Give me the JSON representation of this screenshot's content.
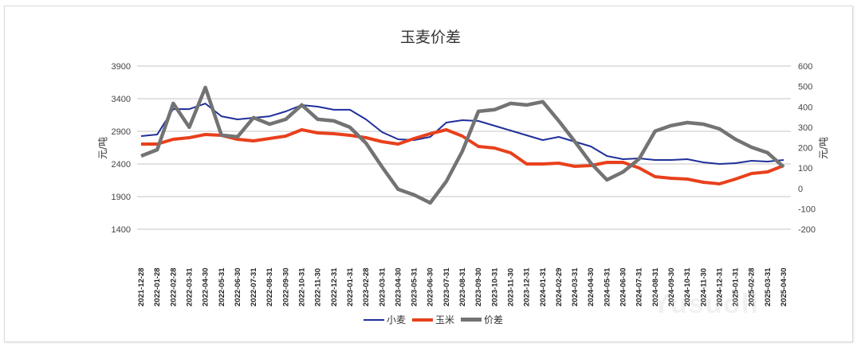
{
  "chart_data": {
    "type": "line",
    "title": "玉麦价差",
    "ylabel": "元/吨",
    "y2label": "元/吨",
    "ylim": [
      1400,
      3900
    ],
    "y2lim": [
      -200,
      600
    ],
    "yticks": [
      1400,
      1900,
      2400,
      2900,
      3400,
      3900
    ],
    "y2ticks": [
      -200,
      -100,
      0,
      100,
      200,
      300,
      400,
      500,
      600
    ],
    "grid": true,
    "legend_position": "bottom",
    "categories": [
      "2021-12-28",
      "2022-01-28",
      "2022-02-28",
      "2022-03-31",
      "2022-04-30",
      "2022-05-31",
      "2022-06-30",
      "2022-07-31",
      "2022-08-31",
      "2022-09-30",
      "2022-10-31",
      "2022-11-30",
      "2022-12-31",
      "2023-01-31",
      "2023-02-28",
      "2023-03-31",
      "2023-04-30",
      "2023-05-31",
      "2023-06-30",
      "2023-07-31",
      "2023-08-31",
      "2023-09-30",
      "2023-10-31",
      "2023-11-30",
      "2023-12-31",
      "2024-01-31",
      "2024-02-29",
      "2024-03-31",
      "2024-04-30",
      "2024-05-31",
      "2024-06-30",
      "2024-07-31",
      "2024-08-31",
      "2024-09-30",
      "2024-10-31",
      "2024-11-30",
      "2024-12-31",
      "2025-01-31",
      "2025-02-28",
      "2025-03-31",
      "2025-04-30"
    ],
    "series": [
      {
        "name": "小麦",
        "axis": "left",
        "color": "#1f2f9a",
        "values": [
          2827,
          2851,
          3241,
          3240,
          3326,
          3131,
          3083,
          3107,
          3131,
          3205,
          3302,
          3278,
          3230,
          3230,
          3083,
          2888,
          2778,
          2766,
          2815,
          3034,
          3071,
          3059,
          2985,
          2912,
          2839,
          2766,
          2815,
          2742,
          2668,
          2522,
          2473,
          2485,
          2461,
          2461,
          2473,
          2424,
          2400,
          2412,
          2449,
          2437,
          2461
        ]
      },
      {
        "name": "玉米",
        "axis": "left",
        "color": "#e8401c",
        "values": [
          2705,
          2705,
          2778,
          2803,
          2851,
          2839,
          2778,
          2754,
          2790,
          2827,
          2924,
          2876,
          2863,
          2839,
          2803,
          2742,
          2705,
          2790,
          2863,
          2924,
          2827,
          2668,
          2644,
          2571,
          2400,
          2400,
          2412,
          2363,
          2376,
          2424,
          2424,
          2339,
          2205,
          2180,
          2168,
          2120,
          2095,
          2168,
          2254,
          2278,
          2376
        ]
      },
      {
        "name": "价差",
        "axis": "right",
        "color": "#737373",
        "values": [
          159,
          190,
          417,
          300,
          495,
          261,
          253,
          347,
          315,
          339,
          409,
          339,
          331,
          300,
          222,
          105,
          -4,
          -32,
          -71,
          34,
          183,
          378,
          386,
          417,
          409,
          425,
          331,
          230,
          124,
          42,
          81,
          144,
          281,
          308,
          323,
          315,
          292,
          241,
          202,
          175,
          105
        ]
      }
    ]
  },
  "legend": {
    "items": [
      "小麦",
      "玉米",
      "价差"
    ]
  },
  "watermark": "Yusuoli"
}
